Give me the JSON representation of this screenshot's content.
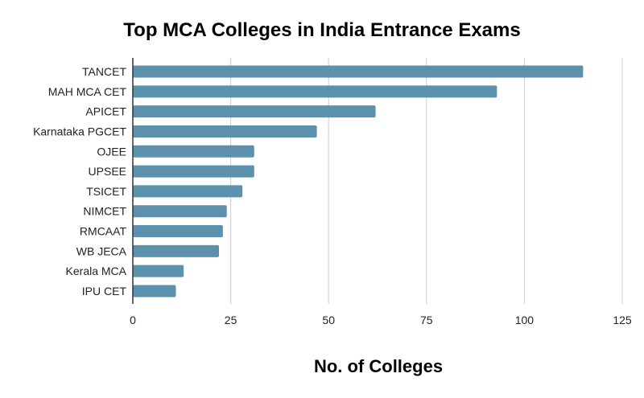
{
  "chart_data": {
    "type": "bar",
    "orientation": "horizontal",
    "title": "Top MCA Colleges in India Entrance Exams",
    "xlabel": "No. of Colleges",
    "ylabel": "",
    "categories": [
      "TANCET",
      "MAH MCA CET",
      "APICET",
      "Karnataka PGCET",
      "OJEE",
      "UPSEE",
      "TSICET",
      "NIMCET",
      "RMCAAT",
      "WB JECA",
      "Kerala MCA",
      "IPU CET"
    ],
    "values": [
      115,
      93,
      62,
      47,
      31,
      31,
      28,
      24,
      23,
      22,
      13,
      11
    ],
    "xlim": [
      0,
      125
    ],
    "xticks": [
      "0",
      "25",
      "50",
      "75",
      "100",
      "125"
    ],
    "grid": "vertical",
    "legend": "none",
    "bar_color": "#5b91ac",
    "grid_color": "#cccccc",
    "axis_color": "#333333"
  }
}
